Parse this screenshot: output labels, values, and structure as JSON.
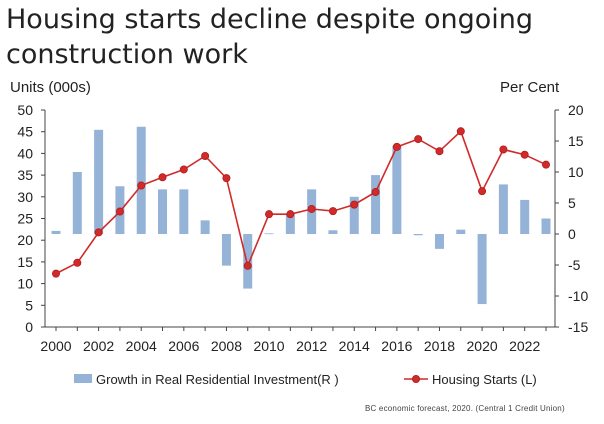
{
  "title": "Housing starts decline despite ongoing construction work",
  "source": "BC economic forecast, 2020. (Central 1 Credit Union)",
  "colors": {
    "bar": "#95b3d7",
    "line": "#d12a2a",
    "marker_edge": "#b01c1c",
    "axis": "#444444",
    "text": "#222222"
  },
  "chart_data": {
    "type": "bar",
    "title": "Housing starts decline despite ongoing construction work",
    "xlabel": "",
    "ylabel": "Units (000s)",
    "y2label": "Per Cent",
    "x": [
      2000,
      2001,
      2002,
      2003,
      2004,
      2005,
      2006,
      2007,
      2008,
      2009,
      2010,
      2011,
      2012,
      2013,
      2014,
      2015,
      2016,
      2017,
      2018,
      2019,
      2020,
      2021,
      2022,
      2023
    ],
    "xticks": [
      "2000",
      "2002",
      "2004",
      "2006",
      "2008",
      "2010",
      "2012",
      "2014",
      "2016",
      "2018",
      "2020",
      "2022"
    ],
    "ylim": [
      0,
      50
    ],
    "yticks": [
      "0",
      "5",
      "10",
      "15",
      "20",
      "25",
      "30",
      "35",
      "40",
      "45",
      "50"
    ],
    "y2lim": [
      -15,
      20
    ],
    "y2ticks": [
      "-15",
      "-10",
      "-5",
      "0",
      "5",
      "10",
      "15",
      "20"
    ],
    "grid": false,
    "legend": "bottom",
    "series": [
      {
        "name": "Growth in Real Residential Investment(R )",
        "type": "bar",
        "axis": "right",
        "values": [
          0.5,
          10,
          16.8,
          7.7,
          17.3,
          7.2,
          7.2,
          2.2,
          -5.1,
          -8.8,
          0.1,
          3.2,
          7.2,
          0.6,
          6.0,
          9.5,
          14.2,
          -0.2,
          -2.4,
          0.7,
          -11.3,
          8.0,
          5.5,
          2.5
        ]
      },
      {
        "name": "Housing Starts (L)",
        "type": "line",
        "axis": "left",
        "values": [
          12.3,
          14.8,
          21.8,
          26.6,
          32.6,
          34.5,
          36.3,
          39.4,
          34.3,
          14.1,
          26.0,
          26.0,
          27.2,
          26.7,
          28.2,
          31.1,
          41.5,
          43.3,
          40.5,
          45.1,
          31.3,
          40.9,
          39.7,
          37.4
        ]
      }
    ]
  }
}
